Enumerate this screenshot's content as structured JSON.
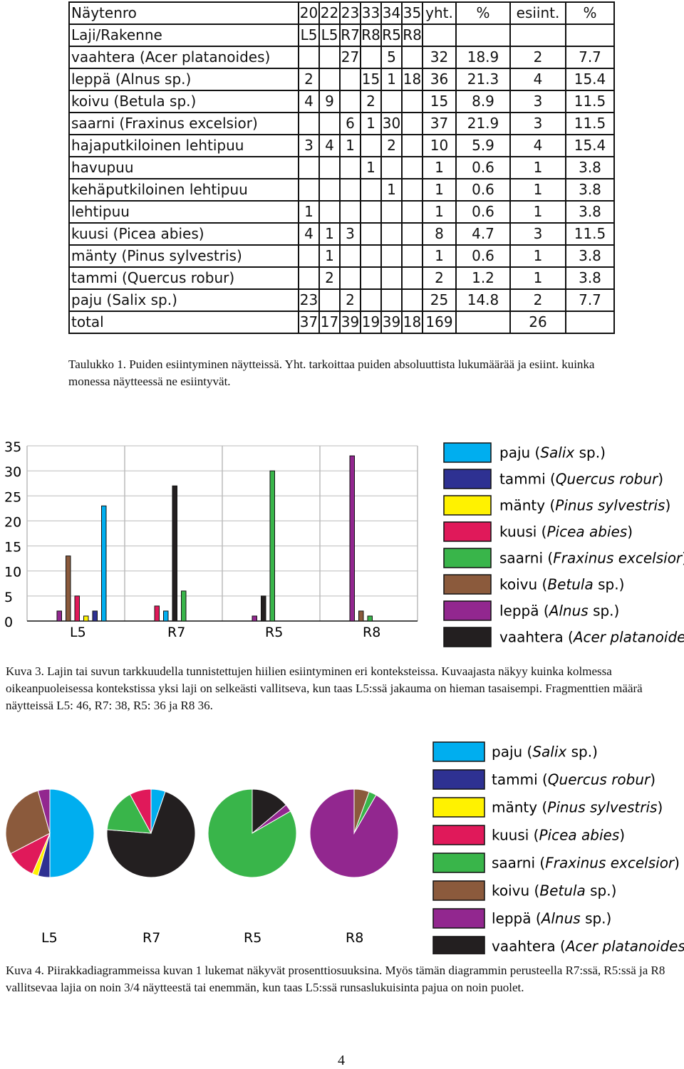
{
  "table": {
    "header_rows": [
      [
        "Näytenro",
        "20",
        "22",
        "23",
        "33",
        "34",
        "35",
        "yht.",
        "%",
        "esiint.",
        "%"
      ],
      [
        "Laji/Rakenne",
        "L5",
        "L5",
        "R7",
        "R8",
        "R5",
        "R8",
        "",
        "",
        "",
        ""
      ]
    ],
    "rows": [
      [
        "vaahtera (Acer platanoides)",
        "",
        "",
        "27",
        "",
        "5",
        "",
        "32",
        "18.9",
        "2",
        "7.7"
      ],
      [
        "leppä (Alnus sp.)",
        "2",
        "",
        "",
        "15",
        "1",
        "18",
        "36",
        "21.3",
        "4",
        "15.4"
      ],
      [
        "koivu (Betula sp.)",
        "4",
        "9",
        "",
        "2",
        "",
        "",
        "15",
        "8.9",
        "3",
        "11.5"
      ],
      [
        "saarni (Fraxinus excelsior)",
        "",
        "",
        "6",
        "1",
        "30",
        "",
        "37",
        "21.9",
        "3",
        "11.5"
      ],
      [
        "hajaputkiloinen lehtipuu",
        "3",
        "4",
        "1",
        "",
        "2",
        "",
        "10",
        "5.9",
        "4",
        "15.4"
      ],
      [
        "havupuu",
        "",
        "",
        "",
        "1",
        "",
        "",
        "1",
        "0.6",
        "1",
        "3.8"
      ],
      [
        "kehäputkiloinen lehtipuu",
        "",
        "",
        "",
        "",
        "1",
        "",
        "1",
        "0.6",
        "1",
        "3.8"
      ],
      [
        "lehtipuu",
        "1",
        "",
        "",
        "",
        "",
        "",
        "1",
        "0.6",
        "1",
        "3.8"
      ],
      [
        "kuusi (Picea abies)",
        "4",
        "1",
        "3",
        "",
        "",
        "",
        "8",
        "4.7",
        "3",
        "11.5"
      ],
      [
        "mänty (Pinus sylvestris)",
        "",
        "1",
        "",
        "",
        "",
        "",
        "1",
        "0.6",
        "1",
        "3.8"
      ],
      [
        "tammi (Quercus robur)",
        "",
        "2",
        "",
        "",
        "",
        "",
        "2",
        "1.2",
        "1",
        "3.8"
      ],
      [
        "paju (Salix sp.)",
        "23",
        "",
        "2",
        "",
        "",
        "",
        "25",
        "14.8",
        "2",
        "7.7"
      ],
      [
        "total",
        "37",
        "17",
        "39",
        "19",
        "39",
        "18",
        "169",
        "",
        "26",
        ""
      ]
    ]
  },
  "caption1": "Taulukko 1. Puiden esiintyminen näytteissä. Yht. tarkoittaa puiden absoluuttista lukumäärää ja esiint. kuinka monessa näytteessä ne esiintyvät.",
  "legend": [
    {
      "common": "paju",
      "latin": "Salix",
      "suffix": "sp.",
      "color": "#00aeef"
    },
    {
      "common": "tammi",
      "latin": "Quercus robur",
      "suffix": "",
      "color": "#2e3192"
    },
    {
      "common": "mänty",
      "latin": "Pinus sylvestris",
      "suffix": "",
      "color": "#fff200"
    },
    {
      "common": "kuusi",
      "latin": "Picea abies",
      "suffix": "",
      "color": "#e0195a"
    },
    {
      "common": "saarni",
      "latin": "Fraxinus excelsior",
      "suffix": "",
      "color": "#39b54a"
    },
    {
      "common": "koivu",
      "latin": "Betula",
      "suffix": "sp.",
      "color": "#8b5a3c"
    },
    {
      "common": "leppä",
      "latin": "Alnus",
      "suffix": "sp.",
      "color": "#92278f"
    },
    {
      "common": "vaahtera",
      "latin": "Acer platanoides",
      "suffix": "",
      "color": "#231f20"
    }
  ],
  "chart_data": [
    {
      "type": "bar",
      "categories": [
        "L5",
        "R7",
        "R5",
        "R8"
      ],
      "ylim": [
        0,
        35
      ],
      "yticks": [
        "0",
        "5",
        "10",
        "15",
        "20",
        "25",
        "30",
        "35"
      ],
      "series": [
        {
          "name": "leppä (Alnus sp.)",
          "values": [
            2,
            0,
            1,
            33
          ]
        },
        {
          "name": "koivu (Betula sp.)",
          "values": [
            13,
            0,
            0,
            2
          ]
        },
        {
          "name": "kuusi (Picea abies)",
          "values": [
            5,
            3,
            0,
            0
          ]
        },
        {
          "name": "mänty (Pinus sylvestris)",
          "values": [
            1,
            0,
            0,
            0
          ]
        },
        {
          "name": "tammi (Quercus robur)",
          "values": [
            2,
            0,
            0,
            0
          ]
        },
        {
          "name": "paju (Salix sp.)",
          "values": [
            23,
            2,
            0,
            0
          ]
        },
        {
          "name": "vaahtera (Acer platanoides)",
          "values": [
            0,
            27,
            5,
            0
          ]
        },
        {
          "name": "saarni (Fraxinus excelsior)",
          "values": [
            0,
            6,
            30,
            1
          ]
        }
      ]
    },
    {
      "type": "pie",
      "labels": [
        "L5",
        "R7",
        "R5",
        "R8"
      ],
      "pies": [
        {
          "label": "L5",
          "slices": [
            {
              "name": "paju (Salix sp.)",
              "value": 23
            },
            {
              "name": "tammi (Quercus robur)",
              "value": 2
            },
            {
              "name": "mänty (Pinus sylvestris)",
              "value": 1
            },
            {
              "name": "kuusi (Picea abies)",
              "value": 5
            },
            {
              "name": "koivu (Betula sp.)",
              "value": 13
            },
            {
              "name": "leppä (Alnus sp.)",
              "value": 2
            }
          ]
        },
        {
          "label": "R7",
          "slices": [
            {
              "name": "paju (Salix sp.)",
              "value": 2
            },
            {
              "name": "vaahtera (Acer platanoides)",
              "value": 27
            },
            {
              "name": "saarni (Fraxinus excelsior)",
              "value": 6
            },
            {
              "name": "kuusi (Picea abies)",
              "value": 3
            }
          ]
        },
        {
          "label": "R5",
          "slices": [
            {
              "name": "vaahtera (Acer platanoides)",
              "value": 5
            },
            {
              "name": "leppä (Alnus sp.)",
              "value": 1
            },
            {
              "name": "saarni (Fraxinus excelsior)",
              "value": 30
            }
          ]
        },
        {
          "label": "R8",
          "slices": [
            {
              "name": "koivu (Betula sp.)",
              "value": 2
            },
            {
              "name": "saarni (Fraxinus excelsior)",
              "value": 1
            },
            {
              "name": "leppä (Alnus sp.)",
              "value": 33
            }
          ]
        }
      ]
    }
  ],
  "caption3": "Kuva 3. Lajin tai suvun tarkkuudella tunnistettujen hiilien esiintyminen eri konteksteissa. Kuvaajasta näkyy kuinka kolmessa oikeanpuoleisessa kontekstissa yksi laji on selkeästi vallitseva, kun taas L5:ssä jakauma on hieman tasaisempi. Fragmenttien määrä näytteissä L5: 46, R7: 38, R5: 36 ja R8 36.",
  "caption4": "Kuva 4. Piirakkadiagrammeissa kuvan 1 lukemat näkyvät prosenttiosuuksina. Myös tämän diagrammin perusteella R7:ssä, R5:ssä ja R8 vallitsevaa lajia on noin 3/4 näytteestä tai enemmän, kun taas L5:ssä runsaslukuisinta pajua on noin puolet.",
  "page_number": "4"
}
